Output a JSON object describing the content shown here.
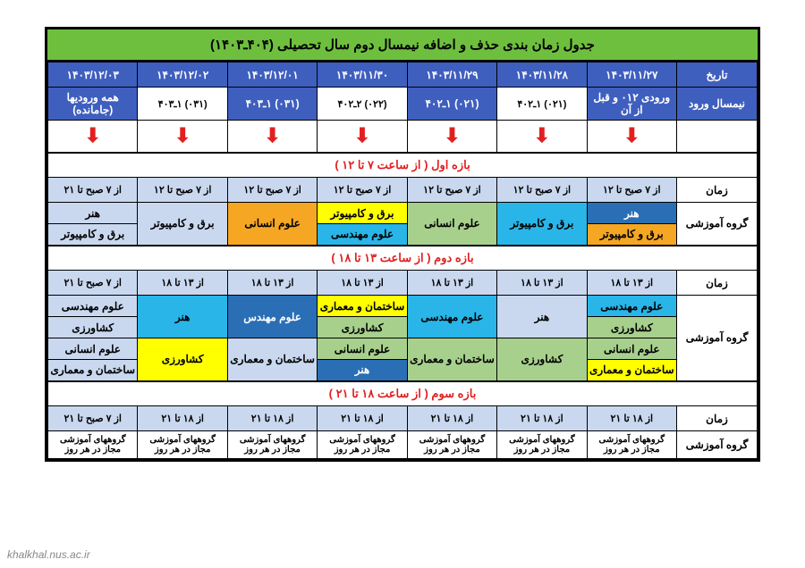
{
  "title": "جدول زمان بندی حذف و اضافه نیمسال دوم سال تحصیلی (۴۰۴ـ۱۴۰۳)",
  "h": {
    "date": "تاریخ",
    "entry": "نیمسال ورود",
    "time": "زمان",
    "group": "گروه آموزشی"
  },
  "dates": [
    "۱۴۰۳/۱۱/۲۷",
    "۱۴۰۳/۱۱/۲۸",
    "۱۴۰۳/۱۱/۲۹",
    "۱۴۰۳/۱۱/۳۰",
    "۱۴۰۳/۱۲/۰۱",
    "۱۴۰۳/۱۲/۰۲",
    "۱۴۰۳/۱۲/۰۳"
  ],
  "entries": [
    "ورودی ۰۱۲ و قبل از آن",
    "(۰۲۱) ۱ـ۴۰۲",
    "(۰۲۱) ۱ـ۴۰۲",
    "(۰۲۲) ۲ـ۴۰۲",
    "(۰۳۱) ۱ـ۴۰۳",
    "(۰۳۱) ۱ـ۴۰۳",
    "همه ورودیها (جامانده)"
  ],
  "sec1": {
    "title": "بازه اول ( از ساعت ۷ تا ۱۲ )",
    "times": [
      "از ۷ صبح تا ۱۲",
      "از ۷ صبح تا ۱۲",
      "از ۷ صبح تا ۱۲",
      "از ۷ صبح تا ۱۲",
      "از ۷ صبح تا ۱۲",
      "از ۷ صبح تا ۱۲",
      "از ۷ صبح تا ۲۱"
    ],
    "g": {
      "d1a": "هنر",
      "d1b": "برق و کامپیوتر",
      "d2": "برق و کامپیوتر",
      "d3": "علوم انسانی",
      "d4a": "برق و کامپیوتر",
      "d4b": "علوم مهندسی",
      "d5": "علوم انسانی",
      "d6": "برق و کامپیوتر",
      "d7a": "هنر",
      "d7b": "برق و کامپیوتر"
    }
  },
  "sec2": {
    "title": "بازه دوم ( از ساعت ۱۳ تا ۱۸ )",
    "times": [
      "از ۱۳ تا ۱۸",
      "از ۱۳ تا ۱۸",
      "از ۱۳ تا ۱۸",
      "از ۱۳ تا ۱۸",
      "از ۱۳ تا ۱۸",
      "از ۱۳ تا ۱۸",
      "از ۷ صبح تا ۲۱"
    ],
    "g": {
      "d1a": "علوم مهندسی",
      "d1b": "کشاورزی",
      "d1c": "علوم انسانی",
      "d1d": "ساختمان و معماری",
      "d2": "هنر",
      "d3": "علوم مهندسی",
      "d4a": "ساختمان و معماری",
      "d4b": "کشاورزی",
      "d4c": "علوم انسانی",
      "d4d": "هنر",
      "d5": "علوم مهندس",
      "d6": "هنر",
      "d7a": "علوم مهندسی",
      "d7b": "کشاورزی",
      "d7c": "علوم انسانی",
      "d7d": "ساختمان و معماری",
      "d23b": "کشاورزی",
      "d23c": "ساختمان و معماری",
      "d56b": "کشاورزی",
      "d56c": "ساختمان و معماری",
      "d3b": "ساختمان و معماری"
    }
  },
  "sec3": {
    "title": "بازه سوم ( از ساعت ۱۸ تا ۲۱ )",
    "times": [
      "از ۱۸ تا ۲۱",
      "از ۱۸ تا ۲۱",
      "از ۱۸ تا ۲۱",
      "از ۱۸ تا ۲۱",
      "از ۱۸ تا ۲۱",
      "از ۱۸ تا ۲۱",
      "از ۷ صبح تا ۲۱"
    ],
    "gtext": "گروههای آموزشی مجاز در هر روز"
  },
  "watermark": "khalkhal.nus.ac.ir"
}
